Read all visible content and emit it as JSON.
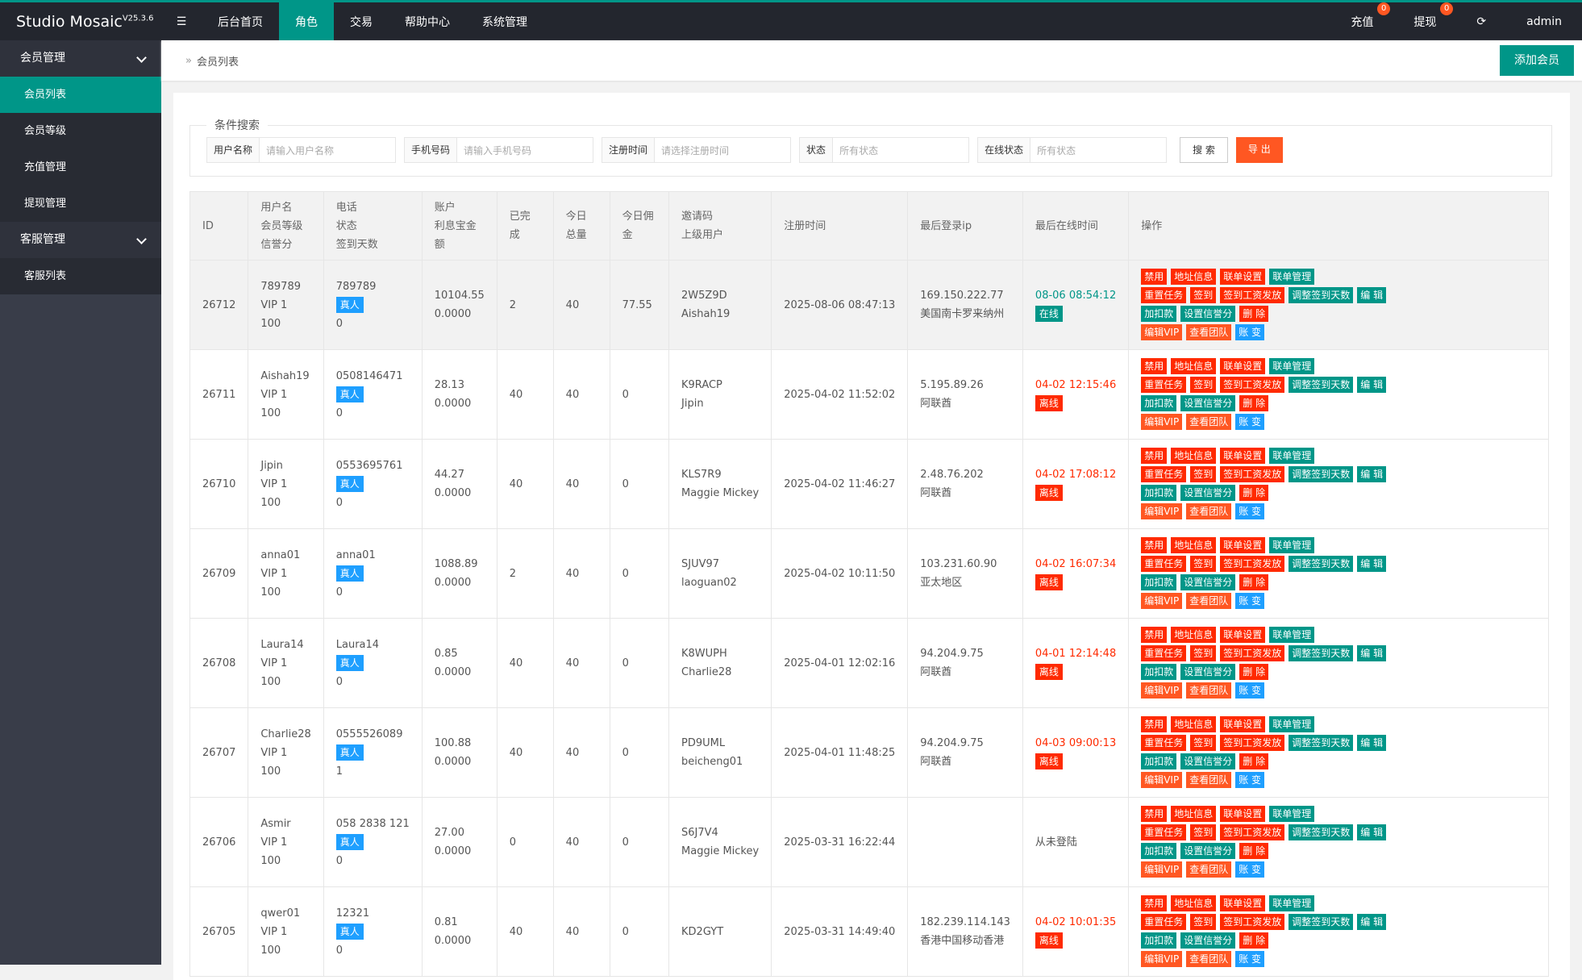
{
  "header": {
    "brand": "Studio Mosaic",
    "version": "V25.3.6",
    "nav": [
      "后台首页",
      "角色",
      "交易",
      "帮助中心",
      "系统管理"
    ],
    "active_nav": 1,
    "right": [
      {
        "label": "充值",
        "badge": "0"
      },
      {
        "label": "提现",
        "badge": "0"
      }
    ],
    "user": "admin"
  },
  "sidebar": [
    {
      "title": "会员管理",
      "items": [
        "会员列表",
        "会员等级",
        "充值管理",
        "提现管理"
      ]
    },
    {
      "title": "客服管理",
      "items": [
        "客服列表"
      ]
    }
  ],
  "breadcrumb": "会员列表",
  "add_button": "添加会员",
  "search": {
    "legend": "条件搜索",
    "fields": [
      {
        "label": "用户名称",
        "placeholder": "请输入用户名称"
      },
      {
        "label": "手机号码",
        "placeholder": "请输入手机号码"
      },
      {
        "label": "注册时间",
        "placeholder": "请选择注册时间"
      },
      {
        "label": "状态",
        "placeholder": "所有状态"
      },
      {
        "label": "在线状态",
        "placeholder": "所有状态"
      }
    ],
    "search_button": "搜 索",
    "export_button": "导 出"
  },
  "table": {
    "headers": [
      [
        "ID"
      ],
      [
        "用户名",
        "会员等级",
        "信誉分"
      ],
      [
        "电话",
        "状态",
        "签到天数"
      ],
      [
        "账户",
        "利息宝金额"
      ],
      [
        "已完成"
      ],
      [
        "今日总量"
      ],
      [
        "今日佣金"
      ],
      [
        "邀请码",
        "上级用户"
      ],
      [
        "注册时间"
      ],
      [
        "最后登录ip"
      ],
      [
        "最后在线时间"
      ],
      [
        "操作"
      ]
    ],
    "actions": [
      [
        {
          "label": "禁用",
          "color": "#ff2a00"
        },
        {
          "label": "地址信息",
          "color": "#ff2a00"
        },
        {
          "label": "联单设置",
          "color": "#ff2a00"
        },
        {
          "label": "联单管理",
          "color": "#009688"
        }
      ],
      [
        {
          "label": "重置任务",
          "color": "#ff2a00"
        },
        {
          "label": "签到",
          "color": "#ff2a00"
        },
        {
          "label": "签到工资发放",
          "color": "#ff2a00"
        },
        {
          "label": "调整签到天数",
          "color": "#009688"
        },
        {
          "label": "编 辑",
          "color": "#009688"
        }
      ],
      [
        {
          "label": "加扣款",
          "color": "#009688"
        },
        {
          "label": "设置信誉分",
          "color": "#009688"
        },
        {
          "label": "删 除",
          "color": "#ff2a00"
        }
      ],
      [
        {
          "label": "编辑VIP",
          "color": "#ff5722"
        },
        {
          "label": "查看团队",
          "color": "#ff5722"
        },
        {
          "label": "账 变",
          "color": "#1e9fff"
        }
      ]
    ],
    "rows": [
      {
        "id": "26712",
        "username": "789789",
        "level": "VIP 1",
        "credit": "100",
        "phone": "789789",
        "type": "真人",
        "signin_days": "0",
        "balance": "10104.55",
        "interest": "0.0000",
        "completed": "2",
        "today_total": "40",
        "today_commission": "77.55",
        "invite_code": "2W5Z9D",
        "parent": "Aishah19",
        "reg_time": "2025-08-06 08:47:13",
        "ip": "169.150.222.77",
        "region": "美国南卡罗来纳州",
        "last_online": "08-06 08:54:12",
        "status": "在线",
        "online": true
      },
      {
        "id": "26711",
        "username": "Aishah19",
        "level": "VIP 1",
        "credit": "100",
        "phone": "0508146471",
        "type": "真人",
        "signin_days": "0",
        "balance": "28.13",
        "interest": "0.0000",
        "completed": "40",
        "today_total": "40",
        "today_commission": "0",
        "invite_code": "K9RACP",
        "parent": "Jipin",
        "reg_time": "2025-04-02 11:52:02",
        "ip": "5.195.89.26",
        "region": "阿联酋",
        "last_online": "04-02 12:15:46",
        "status": "离线",
        "online": false
      },
      {
        "id": "26710",
        "username": "Jipin",
        "level": "VIP 1",
        "credit": "100",
        "phone": "0553695761",
        "type": "真人",
        "signin_days": "0",
        "balance": "44.27",
        "interest": "0.0000",
        "completed": "40",
        "today_total": "40",
        "today_commission": "0",
        "invite_code": "KLS7R9",
        "parent": "Maggie Mickey",
        "reg_time": "2025-04-02 11:46:27",
        "ip": "2.48.76.202",
        "region": "阿联酋",
        "last_online": "04-02 17:08:12",
        "status": "离线",
        "online": false
      },
      {
        "id": "26709",
        "username": "anna01",
        "level": "VIP 1",
        "credit": "100",
        "phone": "anna01",
        "type": "真人",
        "signin_days": "0",
        "balance": "1088.89",
        "interest": "0.0000",
        "completed": "2",
        "today_total": "40",
        "today_commission": "0",
        "invite_code": "SJUV97",
        "parent": "laoguan02",
        "reg_time": "2025-04-02 10:11:50",
        "ip": "103.231.60.90",
        "region": "亚太地区",
        "last_online": "04-02 16:07:34",
        "status": "离线",
        "online": false
      },
      {
        "id": "26708",
        "username": "Laura14",
        "level": "VIP 1",
        "credit": "100",
        "phone": "Laura14",
        "type": "真人",
        "signin_days": "0",
        "balance": "0.85",
        "interest": "0.0000",
        "completed": "40",
        "today_total": "40",
        "today_commission": "0",
        "invite_code": "K8WUPH",
        "parent": "Charlie28",
        "reg_time": "2025-04-01 12:02:16",
        "ip": "94.204.9.75",
        "region": "阿联酋",
        "last_online": "04-01 12:14:48",
        "status": "离线",
        "online": false
      },
      {
        "id": "26707",
        "username": "Charlie28",
        "level": "VIP 1",
        "credit": "100",
        "phone": "0555526089",
        "type": "真人",
        "signin_days": "1",
        "balance": "100.88",
        "interest": "0.0000",
        "completed": "40",
        "today_total": "40",
        "today_commission": "0",
        "invite_code": "PD9UML",
        "parent": "beicheng01",
        "reg_time": "2025-04-01 11:48:25",
        "ip": "94.204.9.75",
        "region": "阿联酋",
        "last_online": "04-03 09:00:13",
        "status": "离线",
        "online": false
      },
      {
        "id": "26706",
        "username": "Asmir",
        "level": "VIP 1",
        "credit": "100",
        "phone": "058 2838 121",
        "type": "真人",
        "signin_days": "0",
        "balance": "27.00",
        "interest": "0.0000",
        "completed": "0",
        "today_total": "40",
        "today_commission": "0",
        "invite_code": "S6J7V4",
        "parent": "Maggie Mickey",
        "reg_time": "2025-03-31 16:22:44",
        "ip": null,
        "region": null,
        "last_online": "从未登陆",
        "status": null,
        "online": null
      },
      {
        "id": "26705",
        "username": "qwer01",
        "level": "VIP 1",
        "credit": "100",
        "phone": "12321",
        "type": "真人",
        "signin_days": "0",
        "balance": "0.81",
        "interest": "0.0000",
        "completed": "40",
        "today_total": "40",
        "today_commission": "0",
        "invite_code": "KD2GYT",
        "parent": null,
        "reg_time": "2025-03-31 14:49:40",
        "ip": "182.239.114.143",
        "region": "香港中国移动香港",
        "last_online": "04-02 10:01:35",
        "status": "离线",
        "online": false
      }
    ]
  }
}
